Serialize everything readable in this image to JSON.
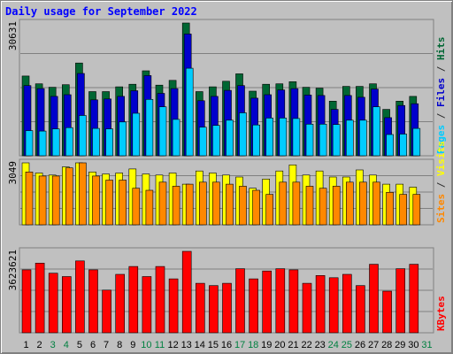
{
  "chart_data": {
    "type": "bar",
    "title": "Daily usage for September 2022",
    "categories": [
      "1",
      "2",
      "3",
      "4",
      "5",
      "6",
      "7",
      "8",
      "9",
      "10",
      "11",
      "12",
      "13",
      "14",
      "15",
      "16",
      "17",
      "18",
      "19",
      "20",
      "21",
      "22",
      "23",
      "24",
      "25",
      "26",
      "27",
      "28",
      "29",
      "30",
      "31"
    ],
    "weekend_days": [
      "3",
      "4",
      "10",
      "11",
      "17",
      "18",
      "24",
      "25",
      "31"
    ],
    "panels": [
      {
        "name": "hits-files-pages",
        "axis_max_label": "30631",
        "ylim": [
          0,
          30631
        ],
        "right_labels": [
          {
            "text": "Hits",
            "color": "#006633"
          },
          {
            "text": " / ",
            "color": "#303030"
          },
          {
            "text": "Files",
            "color": "#0000cc"
          },
          {
            "text": " / ",
            "color": "#303030"
          },
          {
            "text": "Pages",
            "color": "#00ccff"
          }
        ],
        "series": [
          {
            "name": "Hits",
            "color": "#006633",
            "values": [
              18400,
              16600,
              15800,
              16400,
              21400,
              14800,
              14800,
              15900,
              16500,
              19600,
              16300,
              17400,
              30631,
              14800,
              15900,
              17200,
              18900,
              14900,
              16500,
              16600,
              17100,
              15800,
              15600,
              12600,
              16000,
              16000,
              16600,
              10700,
              12600,
              13700,
              0
            ]
          },
          {
            "name": "Files",
            "color": "#0000cc",
            "values": [
              16200,
              15500,
              13700,
              14100,
              19000,
              12900,
              13100,
              13700,
              15000,
              18500,
              14400,
              15500,
              28100,
              12700,
              13700,
              15100,
              16200,
              13300,
              14100,
              15200,
              15500,
              14000,
              13900,
              10700,
              13900,
              13500,
              15400,
              8800,
              11600,
              12000,
              0
            ]
          },
          {
            "name": "Pages",
            "color": "#00ccff",
            "values": [
              5800,
              5700,
              6200,
              6500,
              9300,
              6300,
              6200,
              7800,
              9800,
              13000,
              11300,
              8400,
              20200,
              6600,
              7000,
              8200,
              9900,
              7100,
              8700,
              8700,
              8600,
              7300,
              7300,
              7200,
              8200,
              8200,
              11300,
              4900,
              5000,
              6300,
              0
            ]
          }
        ]
      },
      {
        "name": "visits-sites",
        "axis_max_label": "3049",
        "ylim": [
          0,
          3049
        ],
        "right_labels": [
          {
            "text": "Visits",
            "color": "#ffff00"
          },
          {
            "text": " / ",
            "color": "#303030"
          },
          {
            "text": "Sites",
            "color": "#ff8800"
          }
        ],
        "series": [
          {
            "name": "Visits",
            "color": "#ffff00",
            "values": [
              3049,
              2550,
              2450,
              2850,
              3049,
              2600,
              2500,
              2550,
              2750,
              2500,
              2450,
              2550,
              2000,
              2650,
              2550,
              2450,
              2350,
              1800,
              2250,
              2650,
              2950,
              2450,
              2650,
              2350,
              2350,
              2700,
              2450,
              2000,
              2000,
              1850,
              0
            ]
          },
          {
            "name": "Sites",
            "color": "#ff8800",
            "values": [
              2600,
              2400,
              2400,
              2800,
              3049,
              2400,
              2200,
              2200,
              1800,
              1700,
              2100,
              1900,
              2000,
              2100,
              2100,
              2000,
              1900,
              1700,
              1500,
              2100,
              2100,
              1900,
              1800,
              1900,
              2100,
              2100,
              2100,
              1600,
              1500,
              1500,
              0
            ]
          }
        ]
      },
      {
        "name": "kbytes",
        "axis_max_label": "3623621",
        "ylim": [
          0,
          3623621
        ],
        "right_labels": [
          {
            "text": "KBytes",
            "color": "#ff0000"
          }
        ],
        "series": [
          {
            "name": "KBytes",
            "color": "#ff0000",
            "values": [
              2800000,
              3100000,
              2650000,
              2500000,
              3200000,
              2800000,
              1900000,
              2600000,
              2950000,
              2500000,
              2950000,
              2400000,
              3623621,
              2200000,
              2100000,
              2200000,
              2850000,
              2400000,
              2750000,
              2850000,
              2800000,
              2200000,
              2550000,
              2450000,
              2600000,
              2100000,
              3050000,
              1850000,
              2850000,
              3050000,
              0
            ]
          }
        ]
      }
    ]
  },
  "colors": {
    "background": "#c0c0c0",
    "panel_bg": "#c0c0c0",
    "grid": "#808080",
    "weekday_label": "#000000",
    "weekend_label": "#008040",
    "title": "#0000ff"
  }
}
